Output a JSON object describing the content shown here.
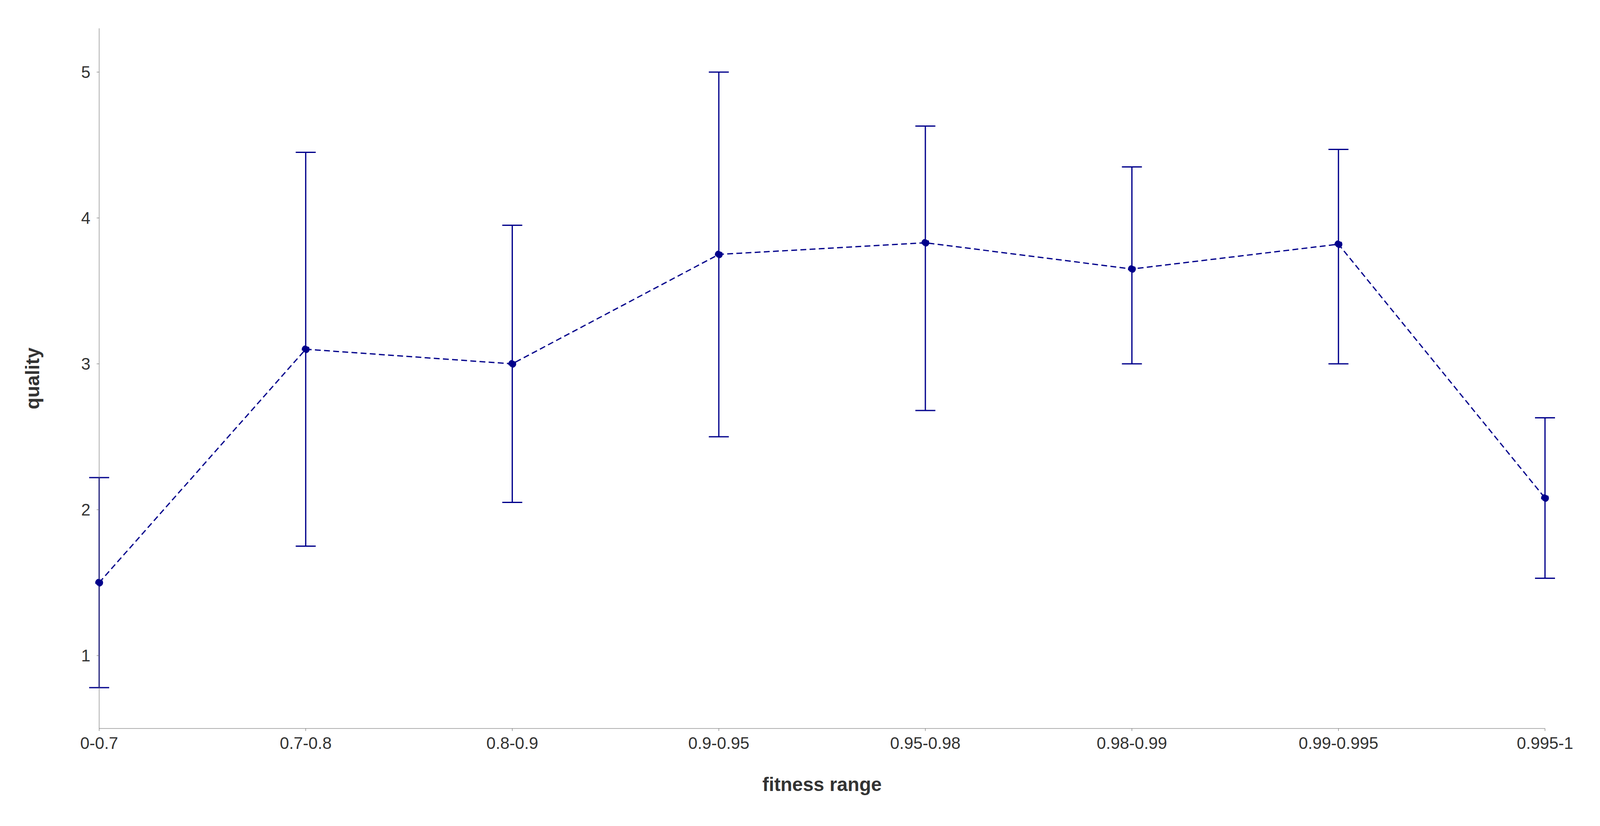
{
  "chart_data": {
    "type": "line",
    "categories": [
      "0-0.7",
      "0.7-0.8",
      "0.8-0.9",
      "0.9-0.95",
      "0.95-0.98",
      "0.98-0.99",
      "0.99-0.995",
      "0.995-1"
    ],
    "values": [
      1.5,
      3.1,
      3.0,
      3.75,
      3.83,
      3.65,
      3.82,
      2.08
    ],
    "yerr_lower": [
      0.72,
      1.35,
      0.95,
      1.25,
      1.15,
      0.65,
      0.82,
      0.55
    ],
    "yerr_upper": [
      0.72,
      1.35,
      0.95,
      1.25,
      0.8,
      0.7,
      0.65,
      0.55
    ],
    "color": "#00008B",
    "marker": "circle",
    "line_style": "dashed",
    "xlabel": "fitness range",
    "ylabel": "quality",
    "ylim": [
      0.5,
      5.3
    ],
    "yticks": [
      1,
      2,
      3,
      4,
      5
    ],
    "grid": false
  }
}
